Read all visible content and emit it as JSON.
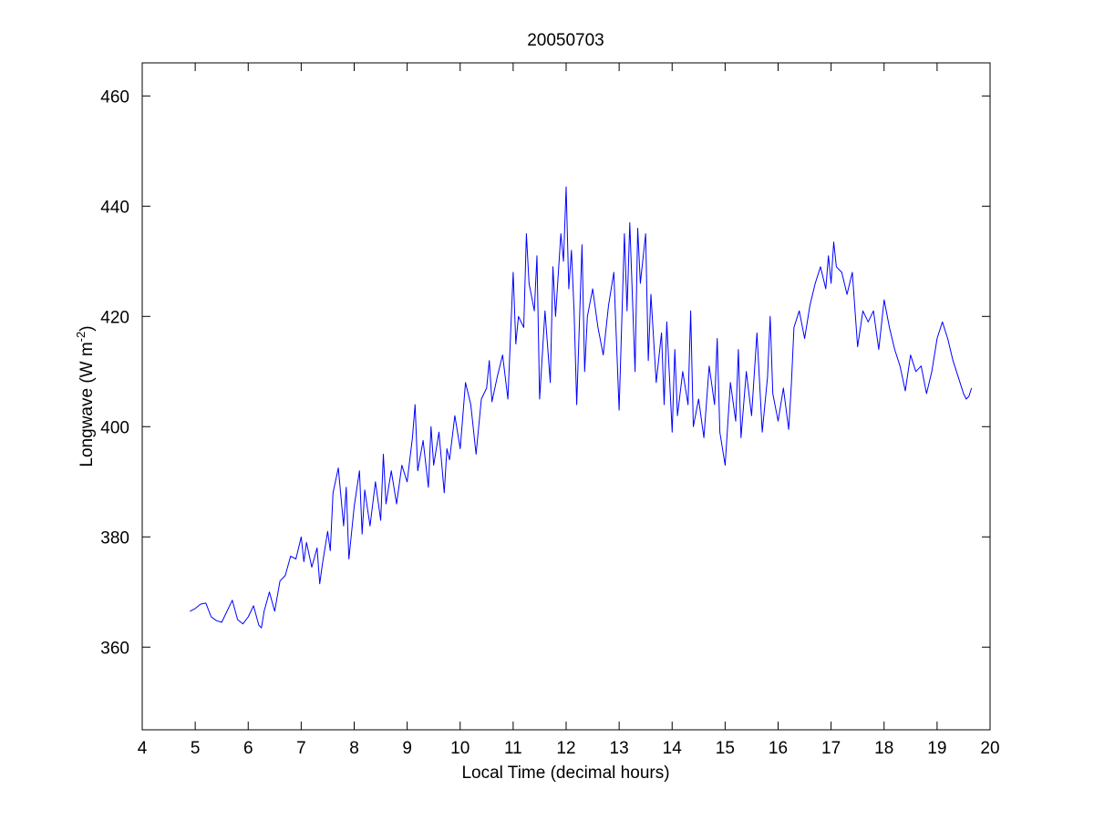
{
  "chart_data": {
    "type": "line",
    "title": "20050703",
    "xlabel": "Local Time (decimal hours)",
    "ylabel": {
      "main": "Longwave (W m",
      "sup": "-2",
      "close": ")"
    },
    "xlim": [
      4,
      20
    ],
    "ylim": [
      345,
      466
    ],
    "xticks": [
      4,
      5,
      6,
      7,
      8,
      9,
      10,
      11,
      12,
      13,
      14,
      15,
      16,
      17,
      18,
      19,
      20
    ],
    "yticks": [
      360,
      380,
      400,
      420,
      440,
      460
    ],
    "grid": false,
    "series": [
      {
        "color": "#0000ff",
        "x": [
          4.9,
          5.0,
          5.1,
          5.2,
          5.3,
          5.4,
          5.5,
          5.6,
          5.7,
          5.8,
          5.9,
          6.0,
          6.1,
          6.2,
          6.25,
          6.3,
          6.4,
          6.5,
          6.6,
          6.7,
          6.8,
          6.9,
          7.0,
          7.05,
          7.1,
          7.2,
          7.3,
          7.35,
          7.4,
          7.5,
          7.55,
          7.6,
          7.7,
          7.8,
          7.85,
          7.9,
          8.0,
          8.1,
          8.15,
          8.2,
          8.3,
          8.4,
          8.5,
          8.55,
          8.6,
          8.7,
          8.8,
          8.9,
          9.0,
          9.1,
          9.15,
          9.2,
          9.3,
          9.4,
          9.45,
          9.5,
          9.6,
          9.7,
          9.75,
          9.8,
          9.9,
          10.0,
          10.1,
          10.2,
          10.3,
          10.4,
          10.5,
          10.55,
          10.6,
          10.7,
          10.8,
          10.9,
          11.0,
          11.05,
          11.1,
          11.2,
          11.25,
          11.3,
          11.4,
          11.45,
          11.5,
          11.6,
          11.7,
          11.75,
          11.8,
          11.9,
          11.95,
          12.0,
          12.05,
          12.1,
          12.15,
          12.2,
          12.3,
          12.35,
          12.4,
          12.5,
          12.6,
          12.7,
          12.8,
          12.9,
          13.0,
          13.1,
          13.15,
          13.2,
          13.3,
          13.35,
          13.4,
          13.5,
          13.55,
          13.6,
          13.7,
          13.8,
          13.85,
          13.9,
          14.0,
          14.05,
          14.1,
          14.2,
          14.3,
          14.35,
          14.4,
          14.5,
          14.6,
          14.7,
          14.8,
          14.85,
          14.9,
          15.0,
          15.1,
          15.2,
          15.25,
          15.3,
          15.4,
          15.5,
          15.6,
          15.7,
          15.8,
          15.85,
          15.9,
          16.0,
          16.1,
          16.2,
          16.25,
          16.3,
          16.4,
          16.5,
          16.6,
          16.7,
          16.8,
          16.9,
          16.95,
          17.0,
          17.05,
          17.1,
          17.2,
          17.3,
          17.4,
          17.5,
          17.6,
          17.7,
          17.8,
          17.9,
          18.0,
          18.1,
          18.2,
          18.3,
          18.4,
          18.5,
          18.6,
          18.7,
          18.8,
          18.9,
          19.0,
          19.1,
          19.2,
          19.3,
          19.4,
          19.5,
          19.55,
          19.6,
          19.65
        ],
        "y": [
          366.5,
          367.0,
          367.8,
          368.0,
          365.5,
          364.8,
          364.5,
          366.5,
          368.5,
          365.0,
          364.2,
          365.5,
          367.5,
          364.0,
          363.5,
          366.5,
          370.0,
          366.5,
          372.0,
          373.0,
          376.5,
          376.0,
          380.0,
          375.5,
          379.0,
          374.5,
          378.0,
          371.5,
          375.0,
          381.0,
          377.5,
          388.0,
          392.5,
          382.0,
          389.0,
          376.0,
          385.5,
          392.0,
          380.5,
          388.5,
          382.0,
          390.0,
          383.0,
          395.0,
          386.0,
          392.0,
          386.0,
          393.0,
          390.0,
          398.0,
          404.0,
          392.0,
          397.5,
          389.0,
          400.0,
          393.0,
          399.0,
          388.0,
          396.0,
          394.0,
          402.0,
          396.0,
          408.0,
          404.0,
          395.0,
          405.0,
          407.0,
          412.0,
          404.5,
          409.0,
          413.0,
          405.0,
          428.0,
          415.0,
          420.0,
          418.0,
          435.0,
          426.0,
          421.0,
          431.0,
          405.0,
          421.0,
          408.0,
          429.0,
          420.0,
          435.0,
          430.0,
          443.5,
          425.0,
          432.0,
          421.0,
          404.0,
          433.0,
          410.0,
          420.0,
          425.0,
          418.0,
          413.0,
          422.0,
          428.0,
          403.0,
          435.0,
          421.0,
          437.0,
          410.0,
          436.0,
          426.0,
          435.0,
          412.0,
          424.0,
          408.0,
          417.0,
          404.0,
          419.0,
          399.0,
          414.0,
          402.0,
          410.0,
          404.0,
          421.0,
          400.0,
          405.0,
          398.0,
          411.0,
          404.0,
          416.0,
          399.0,
          393.0,
          408.0,
          401.0,
          414.0,
          398.0,
          410.0,
          402.0,
          417.0,
          399.0,
          409.0,
          420.0,
          406.0,
          401.0,
          407.0,
          399.5,
          407.5,
          418.0,
          421.0,
          416.0,
          422.0,
          426.0,
          429.0,
          425.0,
          431.0,
          426.0,
          433.5,
          429.0,
          428.0,
          424.0,
          428.0,
          414.5,
          421.0,
          419.0,
          421.0,
          414.0,
          423.0,
          418.0,
          414.0,
          411.0,
          406.5,
          413.0,
          410.0,
          411.0,
          406.0,
          410.0,
          416.0,
          419.0,
          416.0,
          412.0,
          409.0,
          406.0,
          405.0,
          405.5,
          407.0
        ]
      }
    ]
  }
}
